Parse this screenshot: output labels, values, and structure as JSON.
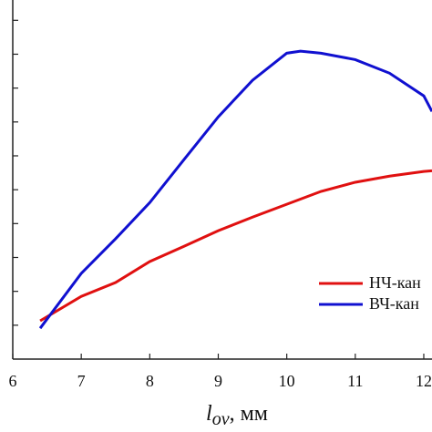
{
  "chart_data": {
    "type": "line",
    "x_label_main": "l",
    "x_label_sub": "ov",
    "x_label_unit": ", мм",
    "xlim": [
      6,
      12.12
    ],
    "xticks": [
      6,
      7,
      8,
      9,
      10,
      11,
      12
    ],
    "ylim": [
      0,
      10.6
    ],
    "yticks": [
      1,
      2,
      3,
      4,
      5,
      6,
      7,
      8,
      9,
      10
    ],
    "legend": "right",
    "series": [
      {
        "name": "НЧ-кан",
        "color": "#e01010",
        "x": [
          6.4,
          7,
          7.5,
          8,
          8.5,
          9,
          9.5,
          10,
          10.5,
          11,
          11.5,
          12,
          12.12
        ],
        "values": [
          1.13,
          1.85,
          2.26,
          2.88,
          3.33,
          3.79,
          4.19,
          4.57,
          4.95,
          5.22,
          5.4,
          5.54,
          5.56
        ]
      },
      {
        "name": "ВЧ-кан",
        "color": "#1010d0",
        "x": [
          6.4,
          7,
          7.5,
          8,
          8.5,
          9,
          9.5,
          10,
          10.2,
          10.5,
          11,
          11.5,
          12,
          12.12
        ],
        "values": [
          0.91,
          2.53,
          3.55,
          4.62,
          5.89,
          7.15,
          8.23,
          9.03,
          9.09,
          9.03,
          8.84,
          8.44,
          7.77,
          7.31
        ]
      }
    ]
  }
}
